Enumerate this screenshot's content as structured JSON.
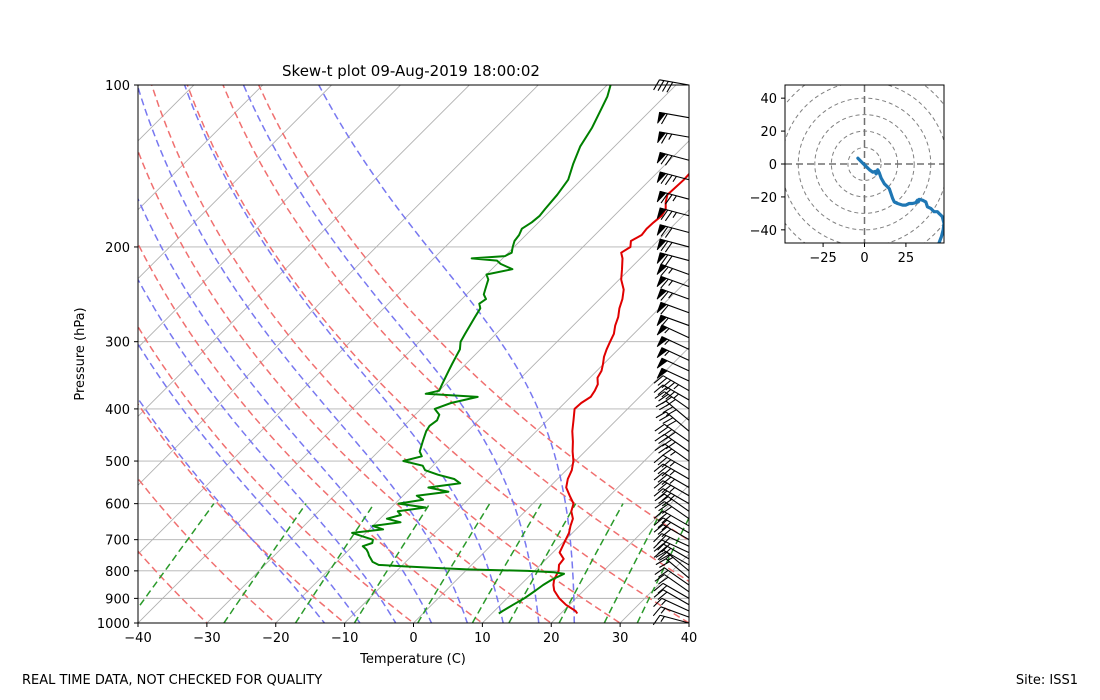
{
  "chart_data": [
    {
      "type": "line",
      "subtype": "skew-t",
      "title": "Skew-t plot 09-Aug-2019 18:00:02",
      "xlabel": "Temperature (C)",
      "ylabel": "Pressure (hPa)",
      "xlim": [
        -40,
        40
      ],
      "ylim": [
        1000,
        100
      ],
      "xticks": [
        -40,
        -30,
        -20,
        -10,
        0,
        10,
        20,
        30,
        40
      ],
      "yticks": [
        1000,
        900,
        800,
        700,
        600,
        500,
        400,
        300,
        200,
        100
      ],
      "xtick_labels": [
        "−40",
        "−30",
        "−20",
        "−10",
        "0",
        "10",
        "20",
        "30",
        "40"
      ],
      "ytick_labels": [
        "1000",
        "900",
        "800",
        "700",
        "600",
        "500",
        "400",
        "300",
        "200",
        "100"
      ],
      "series": [
        {
          "name": "temperature",
          "color": "#e00000",
          "p": [
            960,
            950,
            925,
            900,
            870,
            850,
            830,
            810,
            800,
            780,
            760,
            740,
            720,
            700,
            680,
            660,
            640,
            620,
            600,
            580,
            560,
            540,
            520,
            500,
            480,
            460,
            440,
            420,
            400,
            390,
            380,
            370,
            360,
            350,
            340,
            330,
            320,
            310,
            300,
            290,
            280,
            270,
            260,
            250,
            240,
            230,
            220,
            210,
            205,
            200,
            195,
            190,
            185,
            180,
            175,
            170,
            165,
            160,
            155,
            150,
            145,
            140,
            135,
            130,
            125,
            120,
            115,
            110,
            105,
            100
          ],
          "t": [
            22.4,
            21.8,
            19.5,
            17.6,
            15.7,
            14.8,
            14.1,
            13.7,
            13.5,
            12.7,
            12.5,
            11.0,
            10.5,
            10.0,
            9.5,
            8.7,
            8.0,
            6.7,
            5.9,
            4.2,
            2.5,
            1.5,
            0.8,
            -0.3,
            -1.8,
            -3.2,
            -4.8,
            -6.2,
            -7.7,
            -7.6,
            -7.1,
            -7.4,
            -7.9,
            -8.9,
            -9.3,
            -10.1,
            -11.0,
            -11.7,
            -12.3,
            -12.9,
            -13.9,
            -14.7,
            -15.8,
            -16.7,
            -17.9,
            -19.7,
            -21.1,
            -22.6,
            -23.6,
            -23.1,
            -23.9,
            -23.2,
            -23.4,
            -23.3,
            -23.1,
            -23.5,
            -24.5,
            -25.3,
            -25.2,
            -25.1,
            -25.2,
            -25.8,
            -26.8,
            -27.4,
            -28.4,
            -29.3,
            -30.1,
            -31.3,
            -32.5,
            -34.6
          ]
        },
        {
          "name": "dewpoint",
          "color": "#008000",
          "p": [
            960,
            950,
            925,
            900,
            870,
            850,
            830,
            815,
            810,
            805,
            800,
            795,
            790,
            785,
            780,
            770,
            760,
            750,
            740,
            730,
            720,
            710,
            700,
            690,
            680,
            670,
            660,
            650,
            640,
            630,
            620,
            610,
            600,
            590,
            580,
            570,
            560,
            550,
            540,
            530,
            520,
            510,
            500,
            490,
            480,
            470,
            460,
            450,
            440,
            430,
            420,
            410,
            400,
            390,
            380,
            375,
            370,
            360,
            350,
            340,
            330,
            320,
            310,
            300,
            290,
            280,
            270,
            260,
            255,
            250,
            245,
            240,
            235,
            230,
            225,
            220,
            215,
            212,
            210,
            208,
            205,
            200,
            195,
            190,
            185,
            180,
            175,
            170,
            160,
            150,
            140,
            130,
            120,
            110,
            105,
            100
          ],
          "t": [
            11.0,
            11.2,
            11.8,
            12.5,
            13.0,
            13.3,
            13.8,
            14.5,
            14.7,
            13.0,
            9.0,
            0.0,
            -5.0,
            -9.5,
            -13.5,
            -14.8,
            -15.5,
            -16.2,
            -16.8,
            -17.5,
            -18.5,
            -17.6,
            -18.0,
            -20.0,
            -22.0,
            -18.0,
            -20.0,
            -16.5,
            -19.0,
            -17.5,
            -18.5,
            -15.0,
            -19.5,
            -16.5,
            -18.0,
            -14.0,
            -17.5,
            -13.5,
            -15.0,
            -18.0,
            -20.5,
            -21.5,
            -25.0,
            -23.0,
            -24.0,
            -24.5,
            -25.0,
            -25.5,
            -26.0,
            -26.3,
            -26.0,
            -26.5,
            -28.0,
            -26.5,
            -23.5,
            -31.5,
            -30.0,
            -30.5,
            -31.0,
            -31.5,
            -32.0,
            -32.5,
            -33.0,
            -34.0,
            -34.5,
            -35.0,
            -35.5,
            -36.0,
            -36.8,
            -36.5,
            -37.5,
            -38.0,
            -38.5,
            -39.0,
            -40.0,
            -37.0,
            -39.5,
            -40.5,
            -44.5,
            -40.0,
            -39.5,
            -40.2,
            -40.8,
            -41.0,
            -41.5,
            -41.0,
            -40.8,
            -41.0,
            -41.3,
            -41.9,
            -43.5,
            -45.0,
            -46.0,
            -47.5,
            -48.3,
            -49.5
          ]
        }
      ],
      "reference_lines": {
        "isotherms_color": "#b0b0b0",
        "dry_adiabats_color": "#f07070",
        "moist_adiabats_color": "#7878f0",
        "mixing_ratio_color": "#2a9a2a"
      },
      "wind_barbs": {
        "side": "right",
        "p": [
          1000,
          975,
          950,
          925,
          900,
          875,
          850,
          825,
          800,
          780,
          760,
          740,
          720,
          700,
          680,
          660,
          640,
          620,
          600,
          580,
          560,
          540,
          520,
          500,
          480,
          460,
          440,
          420,
          400,
          385,
          370,
          355,
          340,
          325,
          310,
          295,
          280,
          265,
          250,
          237,
          225,
          212,
          200,
          188,
          175,
          163,
          150,
          138,
          125,
          115,
          100
        ],
        "direction_deg": [
          285,
          290,
          295,
          300,
          300,
          305,
          305,
          310,
          310,
          300,
          300,
          295,
          295,
          300,
          300,
          300,
          305,
          305,
          300,
          300,
          300,
          300,
          300,
          305,
          305,
          305,
          310,
          310,
          305,
          300,
          300,
          295,
          295,
          295,
          295,
          295,
          290,
          290,
          290,
          290,
          290,
          285,
          285,
          285,
          285,
          285,
          285,
          285,
          280,
          280,
          280
        ],
        "speed_kt": [
          15,
          15,
          15,
          20,
          20,
          20,
          20,
          20,
          25,
          25,
          25,
          30,
          30,
          30,
          30,
          30,
          30,
          30,
          35,
          35,
          35,
          35,
          35,
          35,
          40,
          40,
          40,
          40,
          40,
          45,
          45,
          50,
          50,
          55,
          55,
          55,
          60,
          60,
          65,
          65,
          65,
          70,
          70,
          70,
          75,
          75,
          75,
          70,
          65,
          60,
          40
        ]
      }
    },
    {
      "type": "line",
      "subtype": "hodograph",
      "title": "",
      "xlim": [
        -48,
        48
      ],
      "ylim": [
        -48,
        48
      ],
      "xticks": [
        -25,
        0,
        25
      ],
      "yticks": [
        -40,
        -20,
        0,
        20,
        40
      ],
      "xtick_labels": [
        "−25",
        "0",
        "25"
      ],
      "ytick_labels": [
        "−40",
        "−20",
        "0",
        "20",
        "40"
      ],
      "rings": [
        10,
        20,
        30,
        40,
        50,
        60
      ],
      "color": "#1f77b4",
      "u": [
        -4,
        -1,
        1.5,
        3,
        5,
        6.5,
        7,
        8,
        9,
        10,
        12,
        14,
        15,
        16,
        17,
        18,
        20,
        23,
        25,
        27,
        29,
        31,
        32,
        32.5,
        33,
        35,
        37,
        38,
        40,
        42,
        44,
        45,
        46,
        47,
        48,
        47.5,
        46.5,
        45
      ],
      "v": [
        3.5,
        0.5,
        -2,
        -3.5,
        -5,
        -4.5,
        -6,
        -3.5,
        -5.5,
        -8.5,
        -12,
        -14,
        -15,
        -18,
        -21,
        -23,
        -24,
        -25,
        -25,
        -24,
        -24,
        -23.5,
        -22,
        -23,
        -21.5,
        -22,
        -23,
        -26,
        -27,
        -29,
        -29,
        -30,
        -31,
        -32,
        -36,
        -40,
        -44,
        -48
      ]
    }
  ],
  "footer": {
    "left": "REAL TIME DATA, NOT CHECKED FOR QUALITY",
    "right": "Site: ISS1"
  }
}
